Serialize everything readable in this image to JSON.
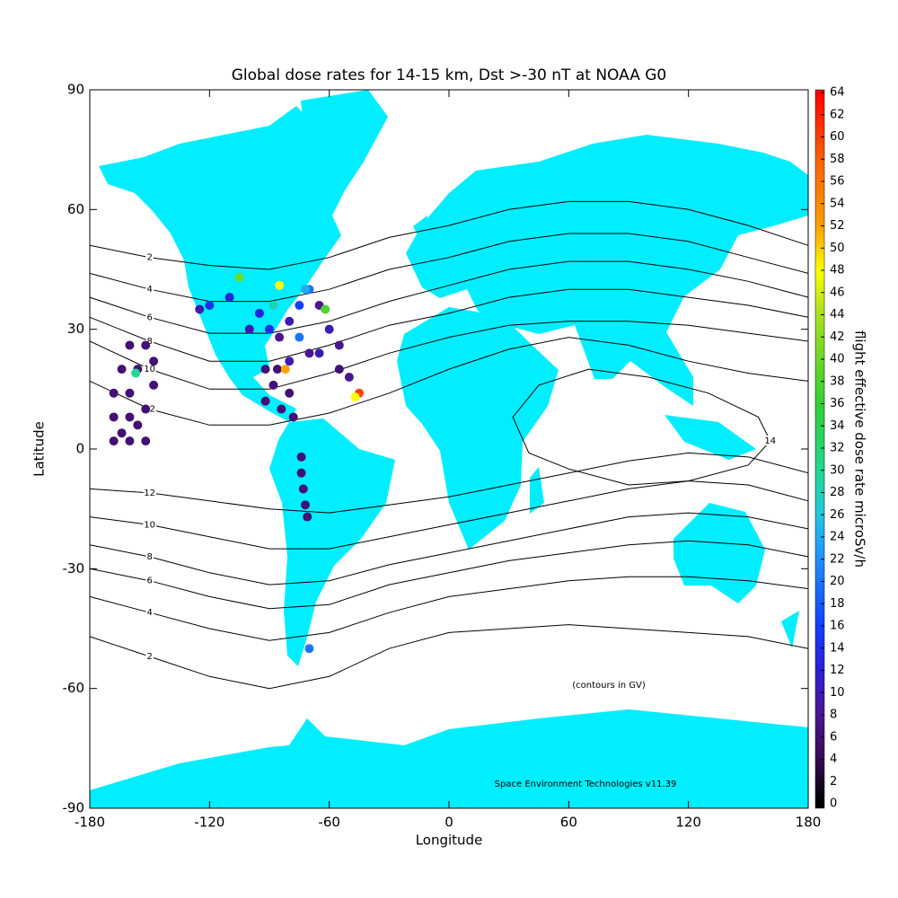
{
  "chart_data": {
    "type": "scatter",
    "title": "Global dose rates for 14-15 km, Dst >-30 nT at NOAA G0",
    "x_label": "Longitude",
    "y_label": "Latitude",
    "colorbar_label": "flight effective dose rate microSv/h",
    "annotations": [
      "(contours in GV)",
      "Space Environment Technologies v11.39"
    ],
    "xlim": [
      -180,
      180
    ],
    "xticks": [
      -180,
      -120,
      -60,
      0,
      60,
      120,
      180
    ],
    "ylim": [
      -90,
      90
    ],
    "yticks": [
      -90,
      -60,
      -30,
      0,
      30,
      60,
      90
    ],
    "zlim": [
      0,
      64
    ],
    "zticks": [
      0,
      2,
      4,
      6,
      8,
      10,
      12,
      14,
      16,
      18,
      20,
      22,
      24,
      26,
      28,
      30,
      32,
      34,
      36,
      38,
      40,
      42,
      44,
      46,
      48,
      50,
      52,
      54,
      56,
      58,
      60,
      62,
      64
    ],
    "colormap": [
      {
        "value": 0,
        "color": "#000000"
      },
      {
        "value": 4,
        "color": "#3a0a55"
      },
      {
        "value": 8,
        "color": "#4b1590"
      },
      {
        "value": 12,
        "color": "#2a20d8"
      },
      {
        "value": 16,
        "color": "#1040ff"
      },
      {
        "value": 22,
        "color": "#2090ff"
      },
      {
        "value": 26,
        "color": "#20c8e0"
      },
      {
        "value": 30,
        "color": "#20d890"
      },
      {
        "value": 36,
        "color": "#30d030"
      },
      {
        "value": 44,
        "color": "#a8e020"
      },
      {
        "value": 48,
        "color": "#ffff00"
      },
      {
        "value": 52,
        "color": "#ffa000"
      },
      {
        "value": 58,
        "color": "#ff6000"
      },
      {
        "value": 64,
        "color": "#ff0000"
      }
    ],
    "contours": [
      {
        "level": 2,
        "lons": [
          -180,
          -150,
          -120,
          -90,
          -60,
          -30,
          0,
          30,
          60,
          90,
          120,
          150,
          180
        ],
        "lats": [
          51,
          48,
          46,
          45,
          48,
          53,
          56,
          60,
          62,
          62,
          60,
          56,
          51
        ]
      },
      {
        "level": 4,
        "lons": [
          -180,
          -150,
          -120,
          -90,
          -60,
          -30,
          0,
          30,
          60,
          90,
          120,
          150,
          180
        ],
        "lats": [
          44,
          40,
          37,
          37,
          40,
          45,
          48,
          52,
          54,
          54,
          52,
          48,
          44
        ]
      },
      {
        "level": 6,
        "lons": [
          -180,
          -150,
          -120,
          -90,
          -60,
          -30,
          0,
          30,
          60,
          90,
          120,
          150,
          180
        ],
        "lats": [
          38,
          33,
          29,
          29,
          32,
          37,
          41,
          45,
          47,
          47,
          45,
          42,
          38
        ]
      },
      {
        "level": 8,
        "lons": [
          -180,
          -150,
          -120,
          -90,
          -60,
          -30,
          0,
          30,
          60,
          90,
          120,
          150,
          180
        ],
        "lats": [
          33,
          27,
          22,
          22,
          26,
          31,
          34,
          38,
          40,
          40,
          38,
          36,
          33
        ]
      },
      {
        "level": 10,
        "lons": [
          -180,
          -150,
          -120,
          -90,
          -60,
          -30,
          0,
          30,
          60,
          90,
          120,
          150,
          180
        ],
        "lats": [
          27,
          20,
          15,
          15,
          19,
          24,
          28,
          31,
          32,
          32,
          31,
          29,
          27
        ]
      },
      {
        "level": 12,
        "lons": [
          -180,
          -150,
          -120,
          -90,
          -60,
          -30,
          0,
          30,
          60,
          90,
          120,
          150,
          180
        ],
        "lats": [
          17,
          10,
          6,
          6,
          9,
          14,
          20,
          25,
          28,
          26,
          22,
          19,
          17
        ]
      },
      {
        "level": 14,
        "lons": [
          32,
          45,
          70,
          100,
          130,
          155,
          161,
          150,
          120,
          90,
          60,
          40
        ],
        "lats": [
          8,
          16,
          20,
          18,
          14,
          8,
          2,
          -4,
          -8,
          -9,
          -5,
          -1
        ]
      },
      {
        "level": 12,
        "lons": [
          -180,
          -150,
          -120,
          -90,
          -60,
          -30,
          0,
          30,
          60,
          90,
          120,
          150,
          180
        ],
        "lats": [
          -10,
          -11,
          -13,
          -15,
          -16,
          -14,
          -12,
          -9,
          -6,
          -3,
          -1,
          -2,
          -6
        ]
      },
      {
        "level": 10,
        "lons": [
          -180,
          -150,
          -120,
          -90,
          -60,
          -30,
          0,
          30,
          60,
          90,
          120,
          150,
          180
        ],
        "lats": [
          -17,
          -19,
          -22,
          -25,
          -25,
          -22,
          -19,
          -16,
          -13,
          -10,
          -8,
          -9,
          -13
        ]
      },
      {
        "level": 8,
        "lons": [
          -180,
          -150,
          -120,
          -90,
          -60,
          -30,
          0,
          30,
          60,
          90,
          120,
          150,
          180
        ],
        "lats": [
          -24,
          -27,
          -31,
          -34,
          -33,
          -29,
          -26,
          -23,
          -20,
          -17,
          -16,
          -17,
          -20
        ]
      },
      {
        "level": 6,
        "lons": [
          -180,
          -150,
          -120,
          -90,
          -60,
          -30,
          0,
          30,
          60,
          90,
          120,
          150,
          180
        ],
        "lats": [
          -30,
          -33,
          -37,
          -40,
          -39,
          -34,
          -31,
          -28,
          -26,
          -24,
          -23,
          -24,
          -27
        ]
      },
      {
        "level": 4,
        "lons": [
          -180,
          -150,
          -120,
          -90,
          -60,
          -30,
          0,
          30,
          60,
          90,
          120,
          150,
          180
        ],
        "lats": [
          -37,
          -41,
          -45,
          -48,
          -46,
          -41,
          -37,
          -35,
          -33,
          -32,
          -32,
          -33,
          -35
        ]
      },
      {
        "level": 2,
        "lons": [
          -180,
          -150,
          -120,
          -90,
          -60,
          -30,
          0,
          30,
          60,
          90,
          120,
          150,
          180
        ],
        "lats": [
          -47,
          -52,
          -57,
          -60,
          -57,
          -50,
          -46,
          -45,
          -44,
          -45,
          -46,
          -47,
          -50
        ]
      }
    ],
    "x": [
      -168,
      -168,
      -168,
      -164,
      -160,
      -160,
      -160,
      -160,
      -156,
      -152,
      -152,
      -152,
      -148,
      -148,
      -164,
      -156,
      -157,
      -92,
      -88,
      -84,
      -80,
      -86,
      -92,
      -78,
      -100,
      -95,
      -90,
      -85,
      -80,
      -75,
      -70,
      -65,
      -60,
      -55,
      -55,
      -50,
      -75,
      -80,
      -70,
      -65,
      -110,
      -120,
      -125,
      -105,
      -85,
      -62,
      -45,
      -47,
      -82,
      -72,
      -88,
      -74,
      -74,
      -73,
      -72,
      -71,
      -70
    ],
    "y": [
      2,
      8,
      14,
      20,
      26,
      2,
      8,
      14,
      20,
      26,
      2,
      10,
      16,
      22,
      4,
      6,
      19,
      12,
      16,
      10,
      14,
      20,
      20,
      8,
      30,
      34,
      30,
      28,
      32,
      36,
      40,
      36,
      30,
      26,
      20,
      18,
      28,
      22,
      24,
      24,
      38,
      36,
      35,
      43,
      41,
      35,
      14,
      13,
      20,
      40,
      36,
      -2,
      -6,
      -10,
      -14,
      -17,
      -50
    ],
    "values": [
      6,
      6,
      6,
      6,
      6,
      6,
      6,
      6,
      6,
      6,
      6,
      6,
      6,
      6,
      6,
      6,
      30,
      6,
      6,
      6,
      6,
      6,
      6,
      6,
      10,
      12,
      14,
      8,
      10,
      16,
      20,
      8,
      10,
      8,
      6,
      8,
      20,
      10,
      8,
      10,
      12,
      14,
      10,
      40,
      48,
      38,
      60,
      48,
      52,
      24,
      28,
      6,
      6,
      6,
      6,
      6,
      20
    ]
  }
}
